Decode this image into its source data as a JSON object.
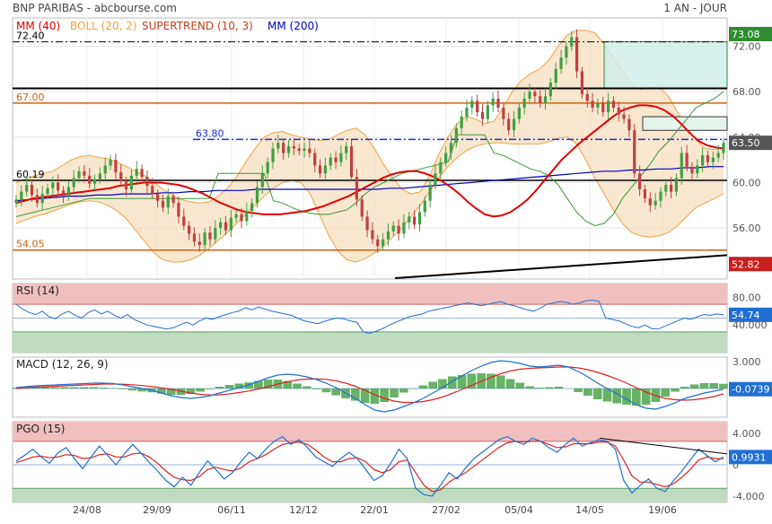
{
  "header": {
    "title": "BNP PARIBAS - abcbourse.com",
    "period": "1 AN - JOUR"
  },
  "colors": {
    "mm40": "#e00000",
    "boll": "#f0a040",
    "supertrend": "#c04020",
    "mm200": "#0000c0",
    "candle_up": "#40a040",
    "candle_down": "#c04040",
    "rsi": "#1f6fd0",
    "macd": "#1f6fd0",
    "signal": "#e02020",
    "hist": "#40a040",
    "pgo": "#1f6fd0",
    "overbought": "#f0c0c0",
    "oversold": "#c0dcc0"
  },
  "chart_data": [
    {
      "type": "candlestick",
      "legend": [
        {
          "label": "MM (40)",
          "color": "#e00000"
        },
        {
          "label": "BOLL (20, 2)",
          "color": "#f0a040"
        },
        {
          "label": "SUPERTREND (10, 3)",
          "color": "#c04020"
        },
        {
          "label": "MM (200)",
          "color": "#0000c0"
        }
      ],
      "ylim": [
        51.5,
        74.5
      ],
      "yticks": [
        72.0,
        68.0,
        64.0,
        60.0,
        56.0
      ],
      "xlabels": [
        "24/08",
        "29/09",
        "06/11",
        "12/12",
        "22/01",
        "27/02",
        "05/04",
        "14/05",
        "19/06"
      ],
      "last_value": 63.5,
      "annotations": [
        {
          "label": "72.40",
          "value": 72.4,
          "style": "dashdot-black"
        },
        {
          "label": "67.00",
          "value": 67.0,
          "style": "orange"
        },
        {
          "label": "63.80",
          "value": 63.8,
          "style": "dashdot-blue"
        },
        {
          "label": "60.19",
          "value": 60.19,
          "style": "black"
        },
        {
          "label": "54.05",
          "value": 54.05,
          "style": "orange"
        }
      ],
      "badges": [
        {
          "label": "73.08",
          "value": 73.08,
          "color": "#2e8b2e"
        },
        {
          "label": "63.50",
          "value": 63.5,
          "color": "#555555"
        },
        {
          "label": "52.82",
          "value": 52.82,
          "color": "#c81e1e"
        }
      ],
      "close": [
        58.5,
        59.2,
        59.8,
        58.9,
        58.2,
        59.0,
        59.5,
        60.0,
        59.3,
        58.8,
        59.6,
        60.4,
        61.0,
        60.6,
        59.9,
        60.3,
        60.8,
        61.5,
        62.0,
        60.9,
        60.1,
        59.4,
        60.6,
        61.2,
        60.5,
        59.7,
        59.0,
        58.4,
        57.8,
        58.8,
        58.2,
        57.0,
        56.2,
        55.5,
        54.8,
        54.5,
        55.6,
        55.0,
        56.0,
        56.5,
        55.8,
        56.9,
        57.2,
        56.6,
        57.5,
        58.2,
        59.6,
        60.8,
        61.8,
        63.0,
        63.5,
        62.6,
        63.2,
        63.0,
        62.8,
        63.0,
        62.6,
        61.5,
        60.8,
        61.5,
        62.2,
        61.8,
        62.6,
        63.2,
        60.5,
        58.5,
        57.0,
        55.8,
        55.0,
        54.4,
        55.0,
        55.7,
        56.2,
        55.5,
        56.5,
        57.0,
        56.3,
        57.4,
        58.4,
        59.8,
        60.8,
        61.8,
        62.6,
        63.5,
        64.8,
        65.8,
        66.6,
        67.2,
        66.2,
        65.6,
        66.8,
        67.4,
        66.6,
        65.6,
        64.6,
        65.6,
        66.6,
        67.4,
        68.0,
        67.6,
        67.0,
        67.6,
        68.8,
        70.0,
        71.0,
        72.0,
        72.8,
        69.8,
        67.8,
        67.2,
        66.6,
        67.0,
        66.2,
        67.2,
        66.6,
        66.0,
        65.6,
        64.6,
        60.8,
        59.4,
        58.6,
        58.0,
        58.4,
        59.2,
        59.8,
        59.2,
        60.4,
        62.6,
        61.4,
        60.8,
        61.5,
        62.4,
        61.8,
        62.2,
        62.6,
        63.5
      ],
      "mm40": [
        58.2,
        58.4,
        58.6,
        58.7,
        58.8,
        58.9,
        59.0,
        59.1,
        59.2,
        59.3,
        59.4,
        59.5,
        59.7,
        59.8,
        59.9,
        60.0,
        60.0,
        60.0,
        59.9,
        59.8,
        59.6,
        59.3,
        59.0,
        58.6,
        58.2,
        57.9,
        57.6,
        57.4,
        57.3,
        57.2,
        57.2,
        57.2,
        57.3,
        57.4,
        57.5,
        57.7,
        57.9,
        58.2,
        58.5,
        58.8,
        59.2,
        59.6,
        60.0,
        60.4,
        60.7,
        60.9,
        61.0,
        61.0,
        60.8,
        60.5,
        60.1,
        59.6,
        59.0,
        58.3,
        57.7,
        57.2,
        57.0,
        57.1,
        57.4,
        57.9,
        58.5,
        59.3,
        60.2,
        61.1,
        62.0,
        62.7,
        63.4,
        64.0,
        64.6,
        65.2,
        65.8,
        66.3,
        66.6,
        66.8,
        66.8,
        66.7,
        66.4,
        65.9,
        65.2,
        64.4,
        63.7,
        63.3,
        63.1,
        63.0
      ],
      "mm200": [
        58.4,
        58.5,
        58.6,
        58.7,
        58.8,
        58.8,
        58.9,
        58.9,
        59.0,
        59.0,
        59.0,
        59.1,
        59.1,
        59.2,
        59.2,
        59.3,
        59.3,
        59.3,
        59.4,
        59.4,
        59.4,
        59.4,
        59.4,
        59.4,
        59.4,
        59.4,
        59.4,
        59.4,
        59.5,
        59.5,
        59.6,
        59.7,
        59.8,
        59.9,
        60.0,
        60.1,
        60.2,
        60.3,
        60.4,
        60.5,
        60.6,
        60.7,
        60.8,
        60.9,
        61.0,
        61.0,
        61.1,
        61.1,
        61.2,
        61.2,
        61.3,
        61.3,
        61.4,
        61.4
      ],
      "boll_upper": [
        60.0,
        60.3,
        60.6,
        60.8,
        61.0,
        61.5,
        62.0,
        62.3,
        62.4,
        62.2,
        62.1,
        61.8,
        61.4,
        61.0,
        60.6,
        60.0,
        59.4,
        58.9,
        58.5,
        58.3,
        58.2,
        58.3,
        58.8,
        59.5,
        60.5,
        61.8,
        63.0,
        64.0,
        64.4,
        64.5,
        64.2,
        64.0,
        63.8,
        63.7,
        63.8,
        64.2,
        64.6,
        64.8,
        64.2,
        63.0,
        61.6,
        60.4,
        59.4,
        59.0,
        59.2,
        60.6,
        62.5,
        64.0,
        65.2,
        65.8,
        65.6,
        65.2,
        65.4,
        66.6,
        68.0,
        69.0,
        69.6,
        70.0,
        70.8,
        72.0,
        73.0,
        73.4,
        73.4,
        73.2,
        72.2,
        71.0,
        69.8,
        68.6,
        68.2,
        68.4,
        68.4,
        67.6,
        66.2,
        64.8,
        63.8,
        63.0,
        62.9,
        63.1
      ],
      "boll_lower": [
        56.4,
        56.7,
        57.0,
        57.2,
        57.5,
        57.8,
        58.1,
        58.3,
        58.4,
        58.3,
        58.0,
        57.5,
        56.8,
        55.8,
        54.8,
        53.8,
        53.2,
        53.0,
        53.0,
        53.2,
        53.6,
        54.2,
        54.9,
        55.6,
        56.4,
        57.2,
        58.0,
        58.8,
        59.5,
        60.0,
        60.2,
        60.0,
        59.0,
        57.2,
        55.4,
        54.0,
        53.2,
        53.0,
        53.3,
        53.8,
        54.4,
        55.2,
        56.0,
        57.0,
        58.0,
        59.2,
        60.4,
        61.4,
        62.2,
        62.8,
        63.2,
        63.4,
        63.5,
        63.5,
        63.4,
        63.4,
        63.4,
        63.4,
        63.6,
        63.9,
        64.0,
        63.4,
        62.0,
        60.4,
        59.0,
        57.6,
        56.4,
        55.6,
        55.3,
        55.2,
        55.3,
        55.6,
        56.2,
        57.0,
        57.8,
        58.2,
        58.6,
        59.0
      ],
      "supertrend": [
        57.0,
        57.2,
        57.4,
        57.6,
        57.8,
        58.0,
        58.2,
        58.4,
        58.6,
        58.6,
        58.6,
        58.6,
        58.6,
        58.6,
        58.6,
        58.6,
        58.6,
        58.6,
        58.6,
        58.6,
        58.6,
        58.6,
        60.8,
        60.8,
        60.8,
        60.8,
        60.8,
        60.8,
        58.4,
        58.2,
        57.8,
        57.5,
        57.3,
        57.2,
        57.2,
        57.4,
        57.6,
        58.2,
        59.0,
        59.6,
        60.0,
        60.4,
        60.8,
        61.0,
        61.2,
        61.4,
        61.6,
        61.8,
        64.2,
        64.2,
        64.2,
        64.2,
        62.6,
        62.4,
        62.0,
        61.6,
        61.2,
        61.0,
        60.6,
        59.8,
        58.6,
        57.4,
        56.6,
        56.2,
        56.4,
        57.2,
        58.6,
        59.6,
        60.6,
        61.6,
        62.8,
        63.6,
        64.6,
        65.6,
        66.6,
        67.0,
        67.4,
        68.0
      ],
      "bearish_trend_breaks": 7
    },
    {
      "type": "line",
      "title": "RSI (14)",
      "ylim": [
        0,
        100
      ],
      "zones": [
        70,
        30
      ],
      "yticks": [
        "80.00",
        "40.000"
      ],
      "last_value": "54.74",
      "values": [
        70,
        63,
        58,
        55,
        60,
        52,
        49,
        56,
        60,
        54,
        50,
        58,
        62,
        56,
        60,
        54,
        50,
        55,
        48,
        44,
        40,
        38,
        36,
        34,
        36,
        40,
        44,
        40,
        46,
        50,
        48,
        52,
        55,
        58,
        60,
        65,
        62,
        66,
        63,
        60,
        58,
        56,
        54,
        50,
        46,
        44,
        42,
        45,
        48,
        50,
        49,
        46,
        44,
        30,
        28,
        31,
        35,
        40,
        44,
        48,
        52,
        54,
        56,
        60,
        62,
        64,
        66,
        68,
        70,
        72,
        70,
        68,
        70,
        72,
        74,
        70,
        68,
        65,
        62,
        60,
        64,
        70,
        72,
        74,
        73,
        70,
        72,
        75,
        76,
        74,
        50,
        48,
        46,
        42,
        38,
        36,
        40,
        35,
        34,
        38,
        42,
        46,
        50,
        48,
        52,
        55,
        54,
        56,
        54.74
      ]
    },
    {
      "type": "line",
      "title": "MACD (12, 26, 9)",
      "yticks": [
        "3.000"
      ],
      "last_value": "-0.0739",
      "ylim": [
        -3.2,
        3.5
      ],
      "macd": [
        0.1,
        0.2,
        0.3,
        0.35,
        0.4,
        0.45,
        0.5,
        0.55,
        0.6,
        0.6,
        0.55,
        0.4,
        0.2,
        0.0,
        -0.2,
        -0.5,
        -0.8,
        -1.0,
        -1.1,
        -1.0,
        -0.8,
        -0.5,
        -0.2,
        0.1,
        0.4,
        0.8,
        1.2,
        1.5,
        1.6,
        1.5,
        1.3,
        1.0,
        0.6,
        0.1,
        -0.5,
        -1.1,
        -1.8,
        -2.4,
        -2.6,
        -2.4,
        -2.0,
        -1.6,
        -1.1,
        -0.5,
        0.1,
        0.8,
        1.4,
        2.0,
        2.5,
        2.9,
        3.1,
        3.0,
        2.8,
        2.5,
        2.4,
        2.5,
        2.6,
        2.4,
        1.9,
        1.3,
        0.6,
        0.0,
        -0.6,
        -1.2,
        -1.8,
        -2.2,
        -2.3,
        -2.0,
        -1.6,
        -1.1,
        -0.8,
        -0.5,
        -0.3,
        -0.0739
      ],
      "signal": [
        0.0,
        0.1,
        0.15,
        0.2,
        0.25,
        0.3,
        0.35,
        0.4,
        0.45,
        0.5,
        0.5,
        0.48,
        0.42,
        0.33,
        0.22,
        0.08,
        -0.1,
        -0.3,
        -0.5,
        -0.65,
        -0.72,
        -0.7,
        -0.6,
        -0.45,
        -0.28,
        -0.05,
        0.2,
        0.5,
        0.75,
        0.95,
        1.05,
        1.08,
        1.02,
        0.86,
        0.6,
        0.25,
        -0.2,
        -0.7,
        -1.1,
        -1.4,
        -1.55,
        -1.55,
        -1.45,
        -1.25,
        -0.95,
        -0.55,
        -0.1,
        0.35,
        0.8,
        1.25,
        1.65,
        1.95,
        2.15,
        2.25,
        2.3,
        2.35,
        2.4,
        2.4,
        2.3,
        2.1,
        1.8,
        1.45,
        1.05,
        0.6,
        0.1,
        -0.4,
        -0.8,
        -1.1,
        -1.25,
        -1.3,
        -1.25,
        -1.1,
        -0.9,
        -0.6
      ]
    },
    {
      "type": "line",
      "title": "PGO (15)",
      "yticks": [
        "4.000",
        "0",
        "-4.000"
      ],
      "last_value": "0.9931",
      "ylim": [
        -4.8,
        5.5
      ],
      "zones": [
        3,
        -3
      ],
      "pgo": [
        0.5,
        1.2,
        2.0,
        1.0,
        0.2,
        1.5,
        2.2,
        0.8,
        -0.5,
        1.0,
        2.4,
        1.2,
        0.0,
        1.4,
        2.6,
        1.5,
        0.3,
        -0.8,
        -2.0,
        -2.8,
        -1.6,
        -2.6,
        -1.0,
        0.5,
        -0.6,
        -1.8,
        -1.0,
        0.4,
        1.6,
        0.8,
        2.0,
        3.0,
        3.6,
        2.6,
        3.2,
        2.2,
        1.0,
        0.4,
        -0.2,
        0.8,
        1.6,
        0.8,
        -0.6,
        -2.0,
        -1.4,
        0.2,
        2.0,
        0.8,
        -3.0,
        -3.8,
        -4.0,
        -2.6,
        -1.0,
        -1.8,
        -0.4,
        0.8,
        1.6,
        2.4,
        3.2,
        3.6,
        3.0,
        2.6,
        3.4,
        3.0,
        2.2,
        1.6,
        2.6,
        3.4,
        2.4,
        2.8,
        3.2,
        3.0,
        2.0,
        -2.0,
        -3.6,
        -2.6,
        -1.8,
        -3.0,
        -3.4,
        -2.0,
        -0.8,
        0.6,
        2.0,
        1.2,
        0.4,
        0.9931
      ],
      "avg": [
        0.3,
        0.6,
        1.0,
        1.1,
        0.9,
        1.0,
        1.3,
        1.2,
        0.8,
        0.9,
        1.3,
        1.4,
        1.0,
        1.0,
        1.4,
        1.5,
        1.0,
        0.2,
        -0.8,
        -1.6,
        -1.9,
        -2.0,
        -1.5,
        -0.6,
        -0.3,
        -0.6,
        -0.8,
        -0.4,
        0.4,
        0.8,
        1.3,
        2.0,
        2.6,
        2.8,
        2.9,
        2.6,
        1.9,
        1.0,
        0.4,
        0.4,
        0.8,
        0.9,
        0.4,
        -0.6,
        -1.0,
        -0.6,
        0.4,
        0.6,
        -1.0,
        -2.6,
        -3.4,
        -3.2,
        -2.2,
        -1.6,
        -1.0,
        -0.2,
        0.6,
        1.4,
        2.2,
        2.8,
        3.0,
        2.9,
        3.0,
        3.0,
        2.6,
        2.2,
        2.3,
        2.7,
        2.7,
        2.7,
        2.9,
        2.9,
        2.4,
        0.6,
        -1.4,
        -2.2,
        -2.2,
        -2.5,
        -2.8,
        -2.4,
        -1.6,
        -0.6,
        0.6,
        1.0,
        0.8,
        0.8
      ]
    }
  ]
}
